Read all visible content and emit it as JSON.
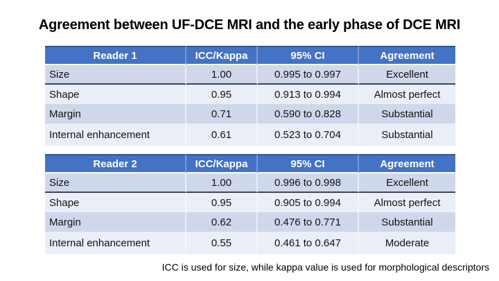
{
  "title": "Agreement between UF-DCE MRI and the early phase of DCE MRI",
  "footnote": "ICC is used for size, while kappa value is used for morphological descriptors",
  "colors": {
    "header_bg": "#4472C4",
    "header_top_border": "#2F5597",
    "header_separator": "#7D99D6",
    "band_dark": "#CFD7EB",
    "band_light": "#EAEEF7",
    "size_row_divider": "#3E4455",
    "text": "#111111"
  },
  "tables": [
    {
      "header": {
        "reader": "Reader 1",
        "metric": "ICC/Kappa",
        "ci": "95% CI",
        "agreement": "Agreement"
      },
      "rows": [
        {
          "label": "Size",
          "value": "1.00",
          "ci": "0.995 to 0.997",
          "agreement": "Excellent"
        },
        {
          "label": "Shape",
          "value": "0.95",
          "ci": "0.913 to 0.994",
          "agreement": "Almost perfect"
        },
        {
          "label": "Margin",
          "value": "0.71",
          "ci": "0.590 to 0.828",
          "agreement": "Substantial"
        },
        {
          "label": "Internal enhancement",
          "value": "0.61",
          "ci": "0.523 to 0.704",
          "agreement": "Substantial"
        }
      ]
    },
    {
      "header": {
        "reader": "Reader 2",
        "metric": "ICC/Kappa",
        "ci": "95% CI",
        "agreement": "Agreement"
      },
      "rows": [
        {
          "label": "Size",
          "value": "1.00",
          "ci": "0.996 to 0.998",
          "agreement": "Excellent"
        },
        {
          "label": "Shape",
          "value": "0.95",
          "ci": "0.905 to 0.994",
          "agreement": "Almost perfect"
        },
        {
          "label": "Margin",
          "value": "0.62",
          "ci": "0.476 to 0.771",
          "agreement": "Substantial"
        },
        {
          "label": "Internal enhancement",
          "value": "0.55",
          "ci": "0.461 to 0.647",
          "agreement": "Moderate"
        }
      ]
    }
  ]
}
